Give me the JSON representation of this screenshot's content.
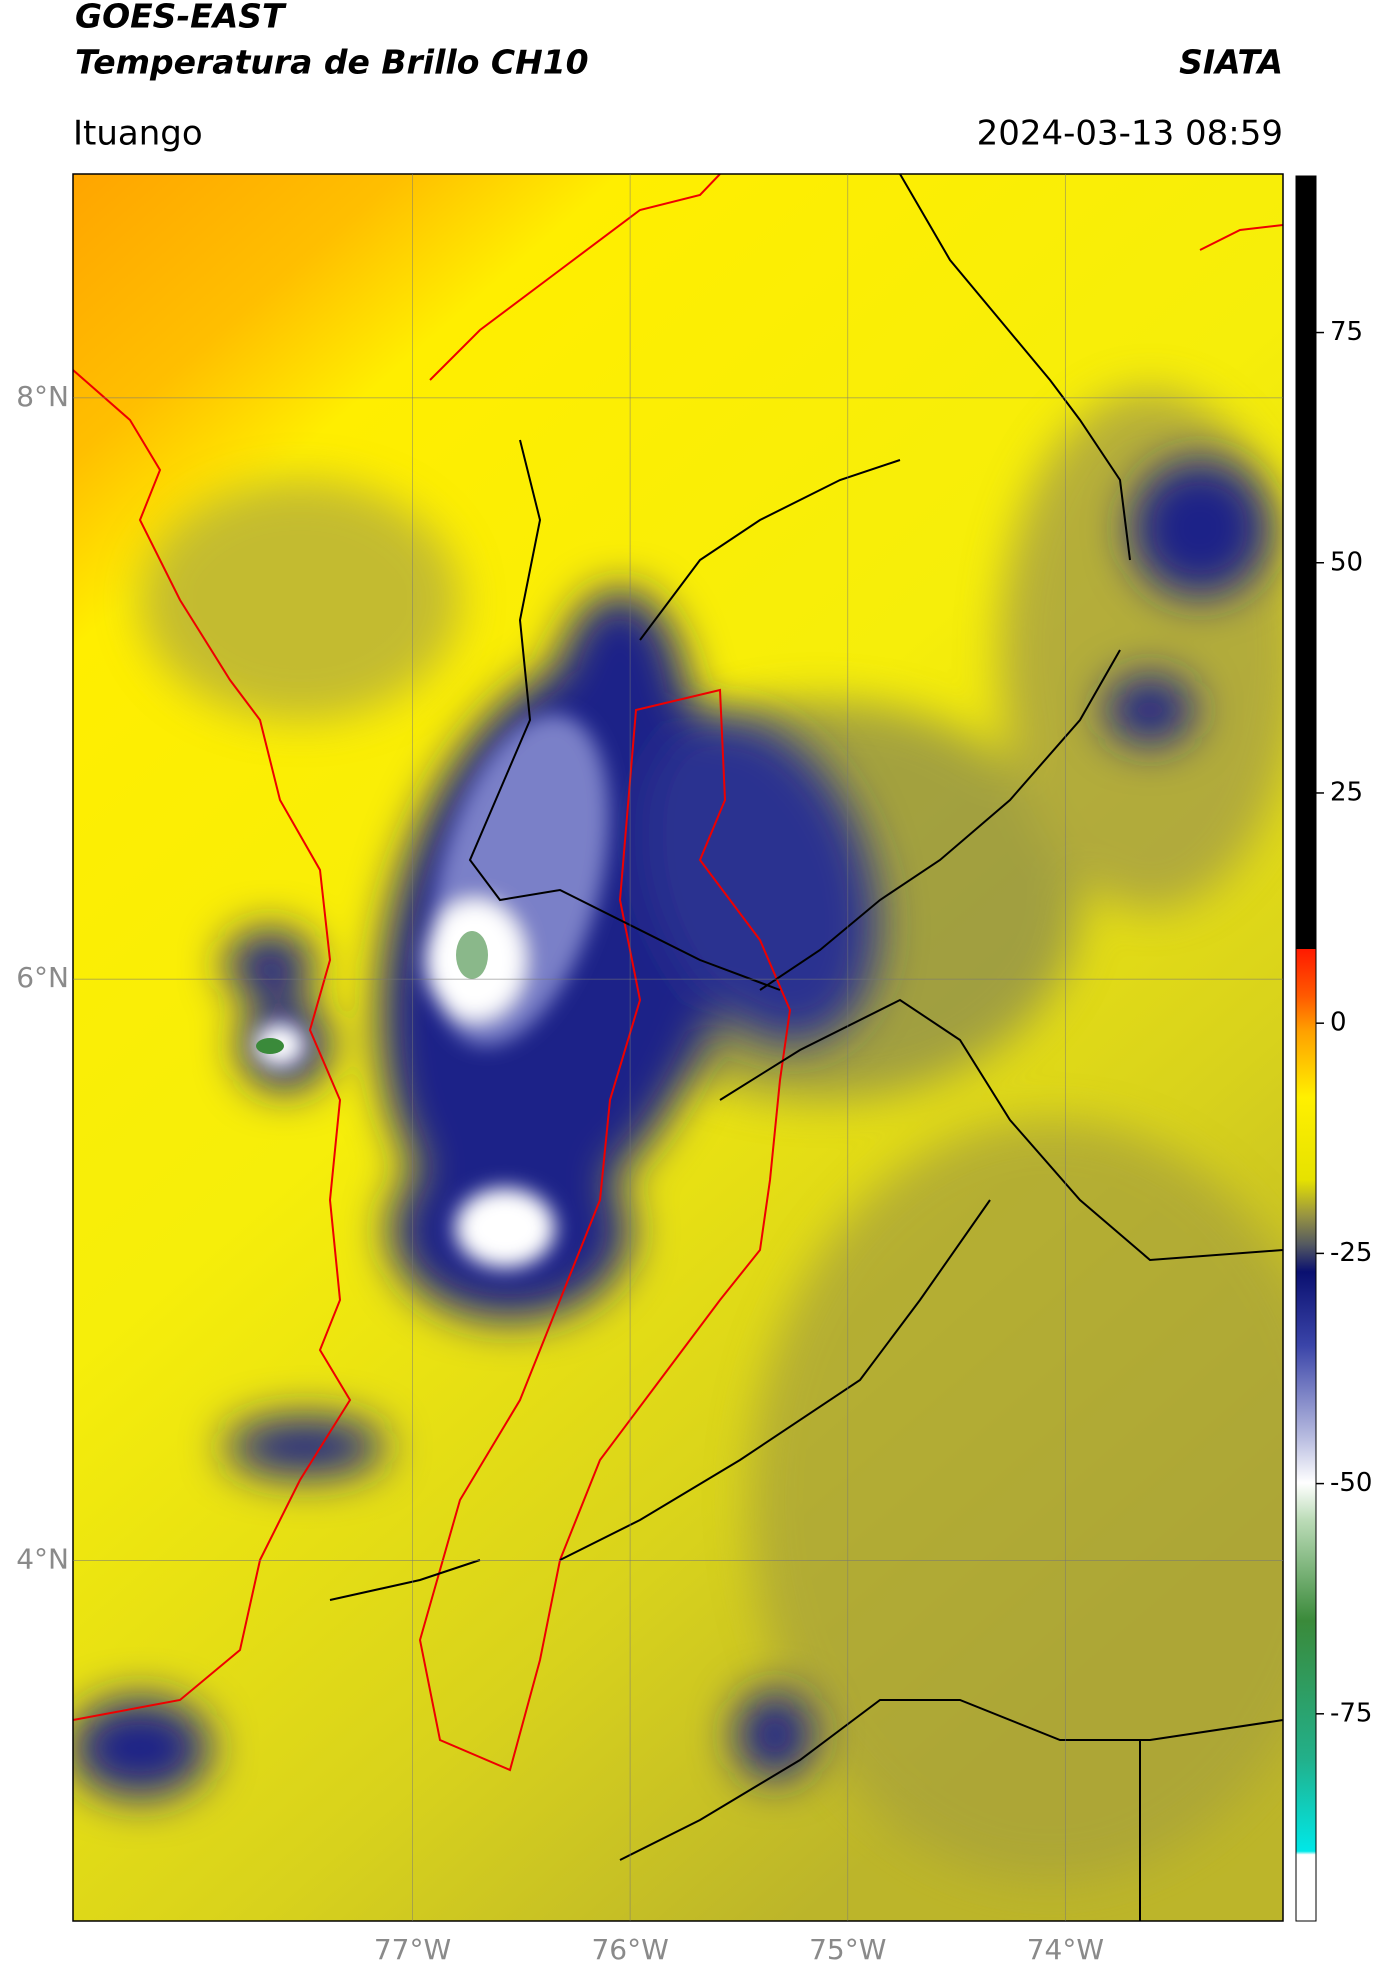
{
  "header": {
    "title_lines": [
      "GOES-EAST",
      "Temperatura de Brillo CH10"
    ],
    "agency": "SIATA",
    "location": "Ituango",
    "datetime": "2024-03-13 08:59"
  },
  "map": {
    "lon_range": [
      -78.56,
      -73.0
    ],
    "lat_range": [
      2.76,
      8.77
    ],
    "lat_ticks": [
      {
        "value": 8,
        "label": "8°N"
      },
      {
        "value": 6,
        "label": "6°N"
      },
      {
        "value": 4,
        "label": "4°N"
      }
    ],
    "lon_ticks": [
      {
        "value": -77,
        "label": "77°W"
      },
      {
        "value": -76,
        "label": "76°W"
      },
      {
        "value": -75,
        "label": "75°W"
      },
      {
        "value": -74,
        "label": "74°W"
      }
    ]
  },
  "colorbar": {
    "lim": [
      -97.5,
      92
    ],
    "ticks": [
      75,
      50,
      25,
      0,
      -25,
      -50,
      -75
    ]
  }
}
